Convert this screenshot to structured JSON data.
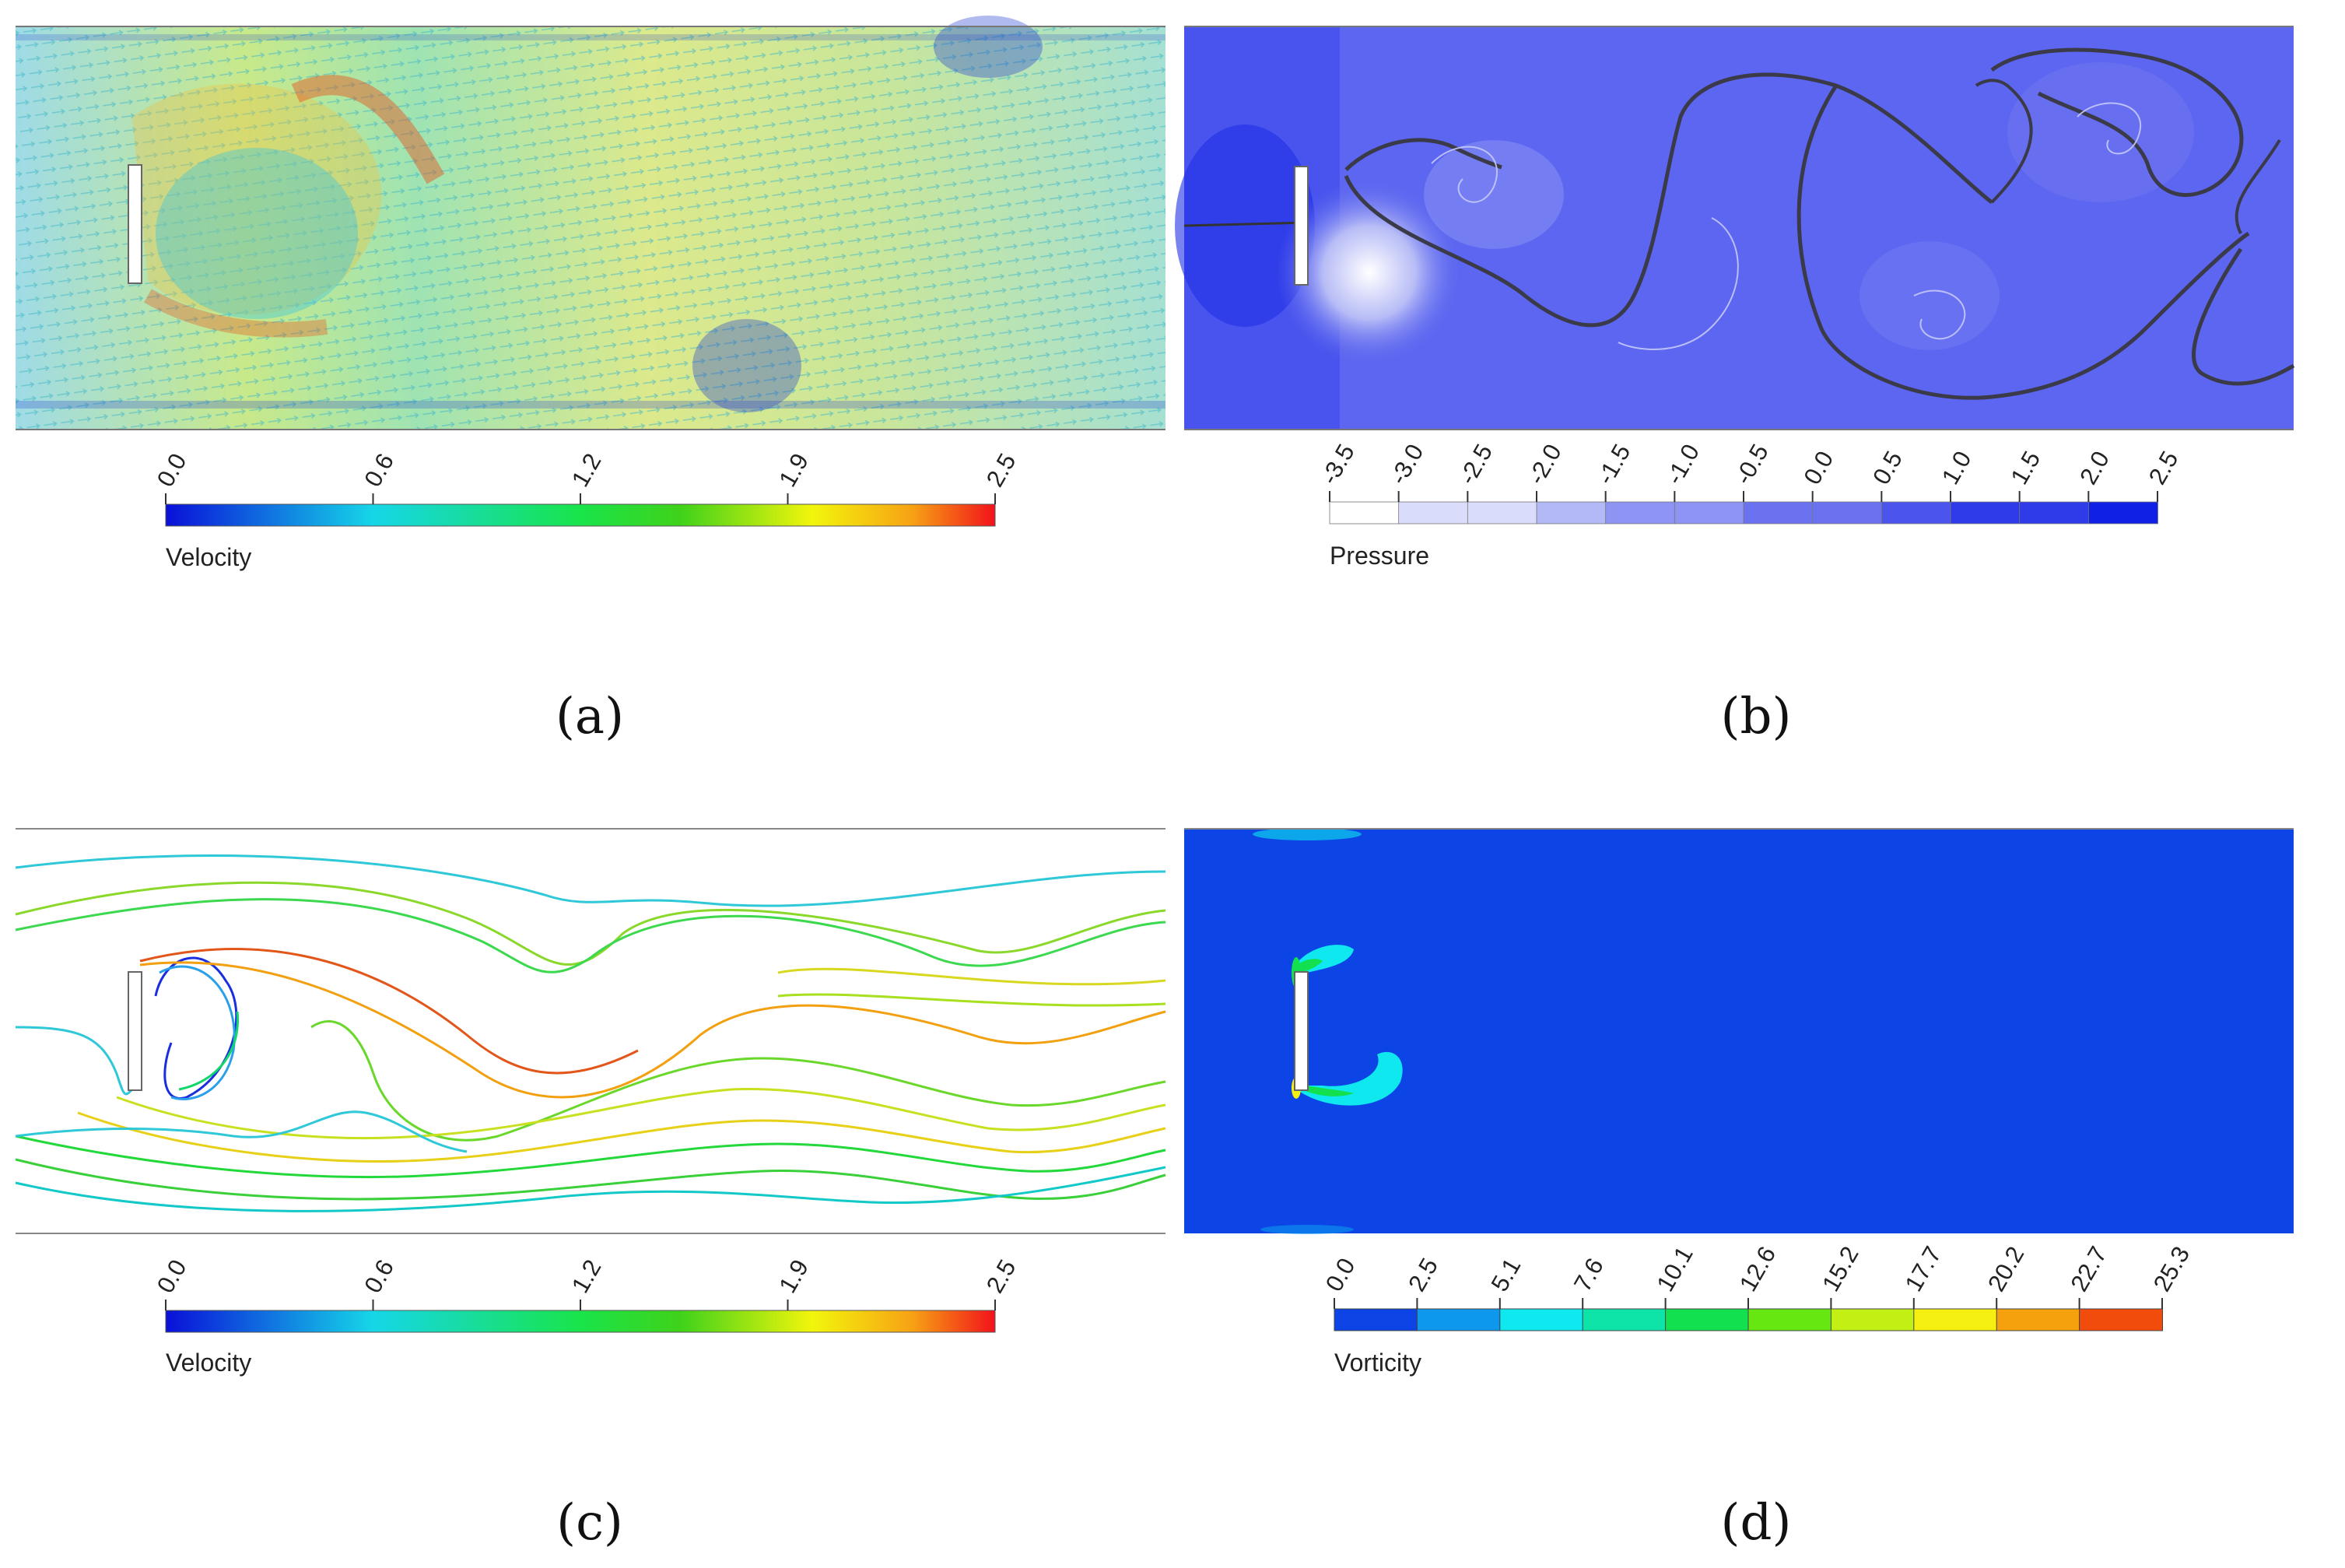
{
  "panels": [
    {
      "id": "a",
      "label": "(a)",
      "colorbar_title": "Velocity",
      "ticks": [
        "0.0",
        "0.6",
        "1.2",
        "1.9",
        "2.5"
      ],
      "gradient": [
        "#0a10d8",
        "#16d6e8",
        "#19e44a",
        "#3fd21a",
        "#f2f50c",
        "#f7a214",
        "#f2121a"
      ]
    },
    {
      "id": "b",
      "label": "(b)",
      "colorbar_title": "Pressure",
      "ticks": [
        "-3.5",
        "-3.0",
        "-2.5",
        "-2.0",
        "-1.5",
        "-1.0",
        "-0.5",
        "0.0",
        "0.5",
        "1.0",
        "1.5",
        "2.0",
        "2.5"
      ],
      "gradient": [
        "#ffffff",
        "#d9dcfb",
        "#b3b8f6",
        "#8d94f3",
        "#6a72f0",
        "#4b55ee",
        "#2f3ae8",
        "#1120e5"
      ]
    },
    {
      "id": "c",
      "label": "(c)",
      "colorbar_title": "Velocity",
      "ticks": [
        "0.0",
        "0.6",
        "1.2",
        "1.9",
        "2.5"
      ],
      "gradient": [
        "#0a10d8",
        "#16d6e8",
        "#19e44a",
        "#3fd21a",
        "#f2f50c",
        "#f7a214",
        "#f2121a"
      ]
    },
    {
      "id": "d",
      "label": "(d)",
      "colorbar_title": "Vorticity",
      "ticks": [
        "0.0",
        "2.5",
        "5.1",
        "7.6",
        "10.1",
        "12.6",
        "15.2",
        "17.7",
        "20.2",
        "22.7",
        "25.3"
      ],
      "bands": [
        "#0c44e6",
        "#0d98ee",
        "#0ee8ee",
        "#0ee3a8",
        "#12e04e",
        "#66e712",
        "#c2f014",
        "#f6f010",
        "#f5a10e",
        "#f24c0d"
      ]
    }
  ]
}
